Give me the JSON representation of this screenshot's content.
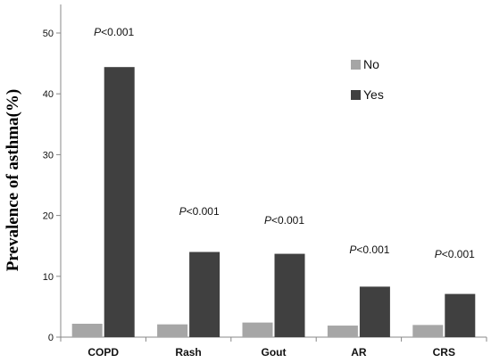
{
  "chart_data": {
    "type": "bar",
    "categories": [
      "COPD",
      "Rash",
      "Gout",
      "AR",
      "CRS"
    ],
    "series": [
      {
        "name": "No",
        "values": [
          2.2,
          2.1,
          2.4,
          1.9,
          2.0
        ],
        "color": "#a6a6a6"
      },
      {
        "name": "Yes",
        "values": [
          44.4,
          14.0,
          13.7,
          8.3,
          7.1
        ],
        "color": "#404040"
      }
    ],
    "annotations": [
      "P<0.001",
      "P<0.001",
      "P<0.001",
      "P<0.001",
      "P<0.001"
    ],
    "title": "",
    "xlabel": "",
    "ylabel": "Prevalence of asthma(%)",
    "ylim": [
      0,
      50
    ],
    "yticks": [
      0,
      10,
      20,
      30,
      40,
      50
    ],
    "grid": false,
    "legend_position": "top-right"
  }
}
